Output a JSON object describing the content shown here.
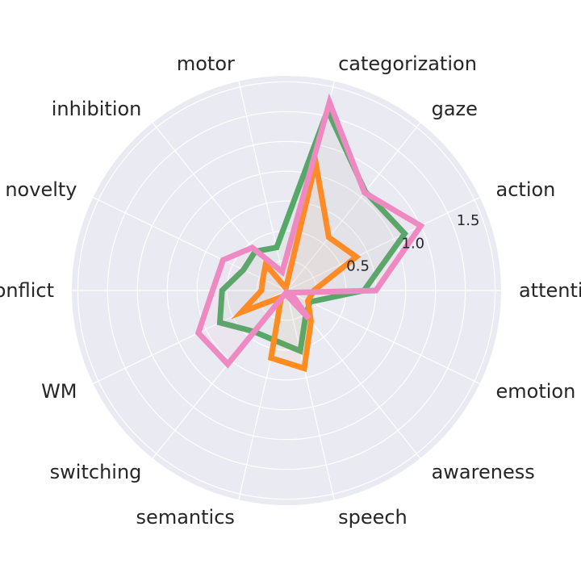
{
  "chart_data": {
    "type": "radar",
    "categories": [
      "attention",
      "action",
      "gaze",
      "categorization",
      "motor",
      "inhibition",
      "novelty",
      "conflict",
      "WM",
      "switching",
      "semantics",
      "speech",
      "awareness",
      "emotion"
    ],
    "rlim": [
      0,
      1.8
    ],
    "rticks": [
      0.5,
      1.0,
      1.5
    ],
    "rtick_labels": [
      "0.5",
      "1.0",
      "1.5"
    ],
    "grid": true,
    "legend": "none",
    "series": [
      {
        "color": "#55a868",
        "values": [
          0.65,
          1.1,
          1.06,
          1.55,
          0.37,
          0.42,
          0.4,
          0.54,
          0.62,
          0.44,
          0.43,
          0.52,
          0.26,
          0.22
        ]
      },
      {
        "color": "#ff8c1e",
        "values": [
          0.23,
          0.65,
          0.57,
          1.1,
          0.02,
          0.28,
          0.22,
          0.21,
          0.42,
          0.07,
          0.58,
          0.67,
          0.33,
          0.2
        ]
      },
      {
        "color": "#ef89c1",
        "values": [
          0.75,
          1.25,
          1.05,
          1.62,
          0.16,
          0.46,
          0.59,
          0.62,
          0.82,
          0.79,
          0.02,
          0.05,
          0.3,
          0.04
        ]
      }
    ]
  }
}
